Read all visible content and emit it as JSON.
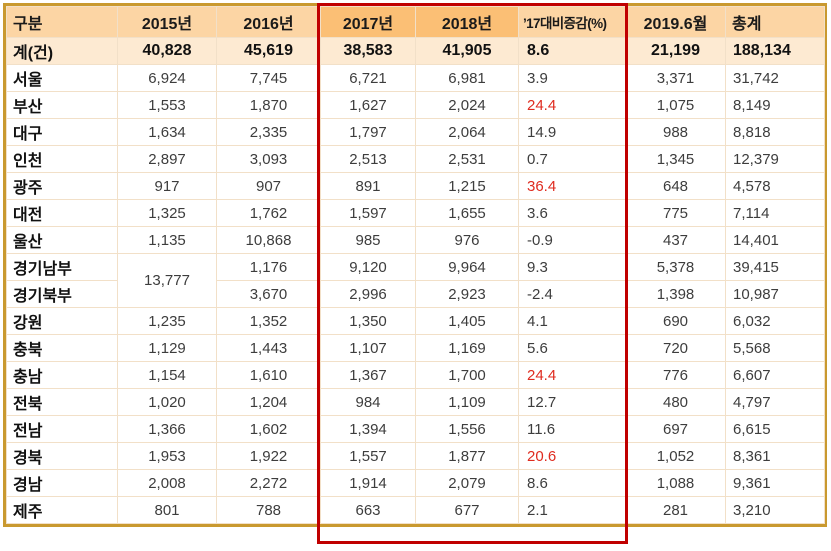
{
  "chart_data": {
    "type": "table",
    "title": "",
    "columns": [
      "구분",
      "2015년",
      "2016년",
      "2017년",
      "2018년",
      "’17대비증감(%)",
      "2019.6월",
      "총계"
    ],
    "highlighted_columns": [
      "2017년",
      "2018년",
      "’17대비증감(%)"
    ],
    "total_row": {
      "label": "계(건)",
      "y2015": "40,828",
      "y2016": "45,619",
      "y2017": "38,583",
      "y2018": "41,905",
      "change": "8.6",
      "y2019": "21,199",
      "total": "188,134"
    },
    "rows": [
      {
        "label": "서울",
        "y2015": "6,924",
        "y2016": "7,745",
        "y2017": "6,721",
        "y2018": "6,981",
        "change": "3.9",
        "change_red": false,
        "y2019": "3,371",
        "total": "31,742"
      },
      {
        "label": "부산",
        "y2015": "1,553",
        "y2016": "1,870",
        "y2017": "1,627",
        "y2018": "2,024",
        "change": "24.4",
        "change_red": true,
        "y2019": "1,075",
        "total": "8,149"
      },
      {
        "label": "대구",
        "y2015": "1,634",
        "y2016": "2,335",
        "y2017": "1,797",
        "y2018": "2,064",
        "change": "14.9",
        "change_red": false,
        "y2019": "988",
        "total": "8,818"
      },
      {
        "label": "인천",
        "y2015": "2,897",
        "y2016": "3,093",
        "y2017": "2,513",
        "y2018": "2,531",
        "change": "0.7",
        "change_red": false,
        "y2019": "1,345",
        "total": "12,379"
      },
      {
        "label": "광주",
        "y2015": "917",
        "y2016": "907",
        "y2017": "891",
        "y2018": "1,215",
        "change": "36.4",
        "change_red": true,
        "y2019": "648",
        "total": "4,578"
      },
      {
        "label": "대전",
        "y2015": "1,325",
        "y2016": "1,762",
        "y2017": "1,597",
        "y2018": "1,655",
        "change": "3.6",
        "change_red": false,
        "y2019": "775",
        "total": "7,114"
      },
      {
        "label": "울산",
        "y2015": "1,135",
        "y2016": "10,868",
        "y2017": "985",
        "y2018": "976",
        "change": "-0.9",
        "change_red": false,
        "y2019": "437",
        "total": "14,401"
      },
      {
        "label": "경기남부",
        "y2015": "13,777",
        "y2015_rowspan": 2,
        "y2016": "1,176",
        "y2017": "9,120",
        "y2018": "9,964",
        "change": "9.3",
        "change_red": false,
        "y2019": "5,378",
        "total": "39,415"
      },
      {
        "label": "경기북부",
        "y2015": null,
        "y2016": "3,670",
        "y2017": "2,996",
        "y2018": "2,923",
        "change": "-2.4",
        "change_red": false,
        "y2019": "1,398",
        "total": "10,987"
      },
      {
        "label": "강원",
        "y2015": "1,235",
        "y2016": "1,352",
        "y2017": "1,350",
        "y2018": "1,405",
        "change": "4.1",
        "change_red": false,
        "y2019": "690",
        "total": "6,032"
      },
      {
        "label": "충북",
        "y2015": "1,129",
        "y2016": "1,443",
        "y2017": "1,107",
        "y2018": "1,169",
        "change": "5.6",
        "change_red": false,
        "y2019": "720",
        "total": "5,568"
      },
      {
        "label": "충남",
        "y2015": "1,154",
        "y2016": "1,610",
        "y2017": "1,367",
        "y2018": "1,700",
        "change": "24.4",
        "change_red": true,
        "y2019": "776",
        "total": "6,607"
      },
      {
        "label": "전북",
        "y2015": "1,020",
        "y2016": "1,204",
        "y2017": "984",
        "y2018": "1,109",
        "change": "12.7",
        "change_red": false,
        "y2019": "480",
        "total": "4,797"
      },
      {
        "label": "전남",
        "y2015": "1,366",
        "y2016": "1,602",
        "y2017": "1,394",
        "y2018": "1,556",
        "change": "11.6",
        "change_red": false,
        "y2019": "697",
        "total": "6,615"
      },
      {
        "label": "경북",
        "y2015": "1,953",
        "y2016": "1,922",
        "y2017": "1,557",
        "y2018": "1,877",
        "change": "20.6",
        "change_red": true,
        "y2019": "1,052",
        "total": "8,361"
      },
      {
        "label": "경남",
        "y2015": "2,008",
        "y2016": "2,272",
        "y2017": "1,914",
        "y2018": "2,079",
        "change": "8.6",
        "change_red": false,
        "y2019": "1,088",
        "total": "9,361"
      },
      {
        "label": "제주",
        "y2015": "801",
        "y2016": "788",
        "y2017": "663",
        "y2018": "677",
        "change": "2.1",
        "change_red": false,
        "y2019": "281",
        "total": "3,210"
      }
    ],
    "layout": {
      "grid": "on",
      "notes": "red box frames 2017년–’17대비증감(%) columns; 2015년 value 13,777 merged across 경기남부/경기북부 rows"
    }
  },
  "colors": {
    "outer_border": "#C9992F",
    "red_box": "#C00000",
    "red_value_text": "#DF2B1F",
    "header_bg": "#FCD5A4",
    "header_highlight_bg": "#FBBF75",
    "total_row_bg": "#FDEAD2",
    "grid_line": "#F2E0C8"
  }
}
